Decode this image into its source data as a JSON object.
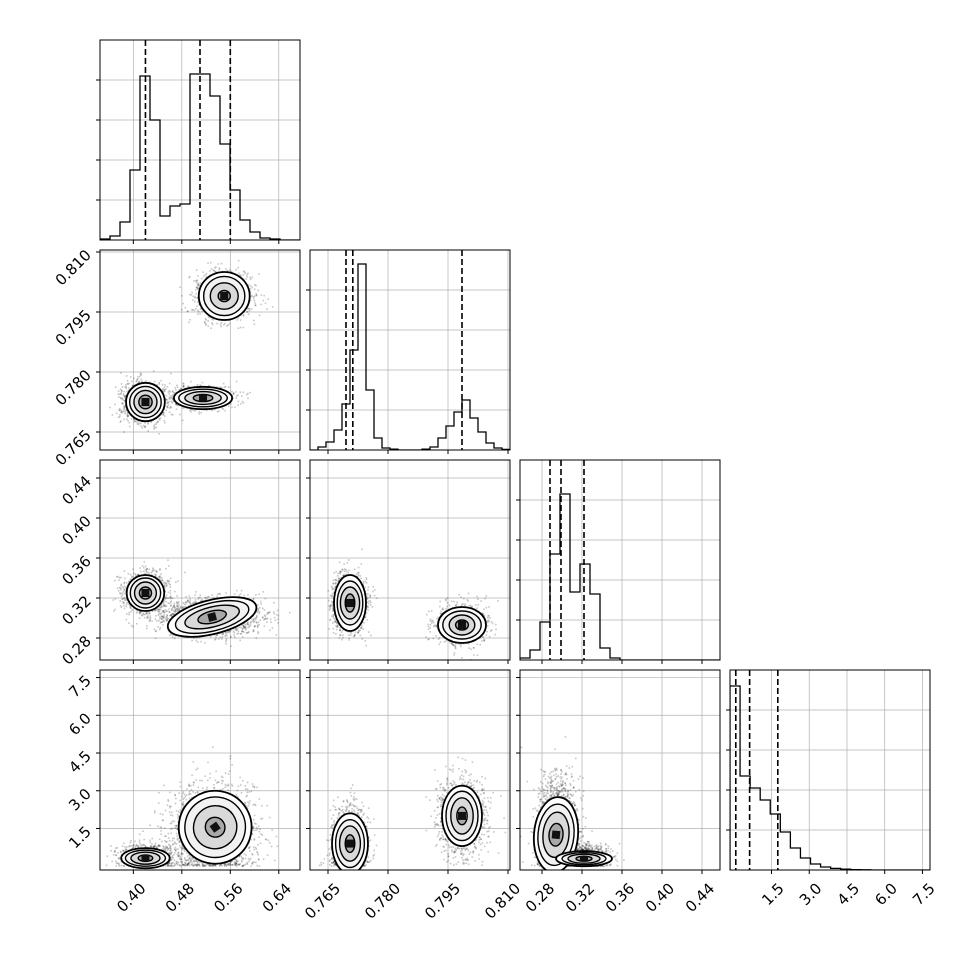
{
  "chart_data": {
    "type": "corner",
    "parameters": 4,
    "grid": true,
    "colors": {
      "line": "#000000",
      "grid": "#b0b0b0",
      "density": "#000000",
      "background": "#ffffff"
    },
    "axes": [
      {
        "range": [
          0.345,
          0.675
        ],
        "ticks": [
          0.4,
          0.48,
          0.56,
          0.64
        ],
        "tick_labels": [
          "0.40",
          "0.48",
          "0.56",
          "0.64"
        ]
      },
      {
        "range": [
          0.7605,
          0.8105
        ],
        "ticks": [
          0.765,
          0.78,
          0.795,
          0.81
        ],
        "tick_labels": [
          "0.765",
          "0.780",
          "0.795",
          "0.810"
        ]
      },
      {
        "range": [
          0.258,
          0.458
        ],
        "ticks": [
          0.28,
          0.32,
          0.36,
          0.4,
          0.44
        ],
        "tick_labels": [
          "0.28",
          "0.32",
          "0.36",
          "0.40",
          "0.44"
        ]
      },
      {
        "range": [
          -0.15,
          7.8
        ],
        "ticks": [
          1.5,
          3.0,
          4.5,
          6.0,
          7.5
        ],
        "tick_labels": [
          "1.5",
          "3.0",
          "4.5",
          "6.0",
          "7.5"
        ]
      }
    ],
    "diagonal": [
      {
        "param": 0,
        "quantiles": [
          0.42,
          0.51,
          0.56
        ],
        "bin_edges": [
          0.345,
          0.3615,
          0.378,
          0.3945,
          0.411,
          0.4275,
          0.444,
          0.4605,
          0.477,
          0.4935,
          0.51,
          0.5265,
          0.543,
          0.5595,
          0.576,
          0.5925,
          0.609,
          0.6255,
          0.642,
          0.6585,
          0.675
        ],
        "counts": [
          0.005,
          0.02,
          0.09,
          0.35,
          0.82,
          0.6,
          0.12,
          0.17,
          0.18,
          0.83,
          0.83,
          0.72,
          0.48,
          0.25,
          0.1,
          0.04,
          0.01,
          0.005,
          0.0,
          0.0
        ]
      },
      {
        "param": 1,
        "quantiles": [
          0.7695,
          0.7712,
          0.7985
        ],
        "bin_edges": [
          0.7605,
          0.7625,
          0.7645,
          0.7665,
          0.7685,
          0.7705,
          0.7725,
          0.7745,
          0.7765,
          0.7785,
          0.7805,
          0.7825,
          0.7845,
          0.7865,
          0.7885,
          0.7905,
          0.7925,
          0.7945,
          0.7965,
          0.7985,
          0.8005,
          0.8025,
          0.8045,
          0.8065,
          0.8085,
          0.8105
        ],
        "counts": [
          0.0,
          0.015,
          0.04,
          0.1,
          0.23,
          0.5,
          0.93,
          0.3,
          0.06,
          0.01,
          0.004,
          0.0,
          0.0,
          0.0,
          0.004,
          0.015,
          0.06,
          0.12,
          0.19,
          0.25,
          0.16,
          0.09,
          0.035,
          0.01,
          0.003
        ]
      },
      {
        "param": 2,
        "quantiles": [
          0.288,
          0.299,
          0.322
        ],
        "bin_edges": [
          0.258,
          0.268,
          0.278,
          0.288,
          0.298,
          0.308,
          0.318,
          0.328,
          0.338,
          0.348,
          0.358,
          0.368,
          0.378,
          0.388,
          0.398,
          0.408,
          0.418,
          0.428,
          0.438,
          0.448,
          0.458
        ],
        "counts": [
          0.01,
          0.05,
          0.19,
          0.53,
          0.83,
          0.34,
          0.48,
          0.33,
          0.06,
          0.01,
          0.0,
          0.0,
          0.0,
          0.0,
          0.0,
          0.0,
          0.0,
          0.0,
          0.0,
          0.0
        ]
      },
      {
        "param": 3,
        "quantiles": [
          0.08,
          0.63,
          1.75
        ],
        "bin_edges": [
          -0.15,
          0.25,
          0.65,
          1.05,
          1.45,
          1.85,
          2.25,
          2.65,
          3.05,
          3.45,
          3.85,
          4.25,
          4.65,
          5.05,
          5.45,
          5.85,
          6.25,
          6.65,
          7.05,
          7.45,
          7.8
        ],
        "counts": [
          0.92,
          0.47,
          0.41,
          0.35,
          0.28,
          0.19,
          0.11,
          0.06,
          0.03,
          0.015,
          0.008,
          0.004,
          0.002,
          0.001,
          0.0,
          0.0,
          0.0,
          0.0,
          0.0,
          0.0
        ]
      }
    ],
    "scatter": [
      {
        "x_param": 0,
        "y_param": 1,
        "modes": [
          {
            "x": 0.42,
            "y": 0.7725,
            "sx": 0.018,
            "sy": 0.0025,
            "w": 0.35
          },
          {
            "x": 0.515,
            "y": 0.7735,
            "sx": 0.025,
            "sy": 0.0014,
            "w": 0.3
          },
          {
            "x": 0.55,
            "y": 0.799,
            "sx": 0.024,
            "sy": 0.003,
            "w": 0.35
          }
        ],
        "contours": [
          {
            "cx": 0.42,
            "cy": 0.7725,
            "rx": [
              0.032,
              0.026,
              0.019,
              0.011
            ],
            "ry": [
              0.0048,
              0.0039,
              0.0029,
              0.0017
            ],
            "angle": 0
          },
          {
            "cx": 0.515,
            "cy": 0.7735,
            "rx": [
              0.048,
              0.04,
              0.03,
              0.016
            ],
            "ry": [
              0.0028,
              0.0022,
              0.0016,
              0.0009
            ],
            "angle": 0
          },
          {
            "cx": 0.55,
            "cy": 0.799,
            "rx": [
              0.042,
              0.034,
              0.023,
              0.01
            ],
            "ry": [
              0.006,
              0.0049,
              0.0033,
              0.0014
            ],
            "angle": 0
          }
        ]
      },
      {
        "x_param": 0,
        "y_param": 2,
        "modes": [
          {
            "x": 0.42,
            "y": 0.325,
            "sx": 0.018,
            "sy": 0.01,
            "w": 0.4
          },
          {
            "x": 0.53,
            "y": 0.301,
            "sx": 0.04,
            "sy": 0.009,
            "w": 0.6
          }
        ],
        "contours": [
          {
            "cx": 0.42,
            "cy": 0.325,
            "rx": [
              0.031,
              0.025,
              0.018,
              0.01
            ],
            "ry": [
              0.018,
              0.015,
              0.011,
              0.006
            ],
            "angle": 0
          },
          {
            "cx": 0.53,
            "cy": 0.301,
            "rx": [
              0.075,
              0.062,
              0.046,
              0.024
            ],
            "ry": [
              0.017,
              0.014,
              0.01,
              0.006
            ],
            "angle": -14
          }
        ]
      },
      {
        "x_param": 0,
        "y_param": 3,
        "modes": [
          {
            "x": 0.42,
            "y": 0.35,
            "sx": 0.02,
            "sy": 0.25,
            "w": 0.35
          },
          {
            "x": 0.53,
            "y": 1.3,
            "sx": 0.035,
            "sy": 0.9,
            "w": 0.65
          }
        ],
        "contours": [
          {
            "cx": 0.42,
            "cy": 0.32,
            "rx": [
              0.04,
              0.033,
              0.024,
              0.012
            ],
            "ry": [
              0.4,
              0.32,
              0.24,
              0.13
            ],
            "angle": 0
          },
          {
            "cx": 0.535,
            "cy": 1.55,
            "rx": [
              0.06,
              0.05,
              0.036,
              0.016
            ],
            "ry": [
              1.45,
              1.2,
              0.85,
              0.4
            ],
            "angle": -35
          }
        ]
      },
      {
        "x_param": 1,
        "y_param": 2,
        "modes": [
          {
            "x": 0.7705,
            "y": 0.315,
            "sx": 0.002,
            "sy": 0.013,
            "w": 0.65
          },
          {
            "x": 0.7985,
            "y": 0.293,
            "sx": 0.003,
            "sy": 0.01,
            "w": 0.35
          }
        ],
        "contours": [
          {
            "cx": 0.7705,
            "cy": 0.315,
            "rx": [
              0.004,
              0.0032,
              0.0024,
              0.0012
            ],
            "ry": [
              0.028,
              0.022,
              0.016,
              0.009
            ],
            "angle": 0
          },
          {
            "cx": 0.7985,
            "cy": 0.293,
            "rx": [
              0.006,
              0.0048,
              0.0032,
              0.0016
            ],
            "ry": [
              0.018,
              0.014,
              0.01,
              0.005
            ],
            "angle": 0
          }
        ]
      },
      {
        "x_param": 1,
        "y_param": 3,
        "modes": [
          {
            "x": 0.7705,
            "y": 0.7,
            "sx": 0.002,
            "sy": 0.75,
            "w": 0.65
          },
          {
            "x": 0.7985,
            "y": 2.0,
            "sx": 0.003,
            "sy": 0.8,
            "w": 0.35
          }
        ],
        "contours": [
          {
            "cx": 0.7705,
            "cy": 0.9,
            "rx": [
              0.0045,
              0.0036,
              0.0026,
              0.0012
            ],
            "ry": [
              1.2,
              0.95,
              0.7,
              0.35
            ],
            "angle": 0
          },
          {
            "cx": 0.7985,
            "cy": 2.0,
            "rx": [
              0.005,
              0.004,
              0.0028,
              0.0013
            ],
            "ry": [
              1.2,
              0.98,
              0.72,
              0.35
            ],
            "angle": 0
          }
        ]
      },
      {
        "x_param": 2,
        "y_param": 3,
        "modes": [
          {
            "x": 0.296,
            "y": 1.4,
            "sx": 0.01,
            "sy": 1.0,
            "w": 0.65
          },
          {
            "x": 0.322,
            "y": 0.3,
            "sx": 0.012,
            "sy": 0.25,
            "w": 0.35
          }
        ],
        "contours": [
          {
            "cx": 0.294,
            "cy": 1.25,
            "rx": [
              0.022,
              0.018,
              0.013,
              0.007
            ],
            "ry": [
              1.5,
              1.22,
              0.9,
              0.45
            ],
            "angle": 5
          },
          {
            "cx": 0.322,
            "cy": 0.3,
            "rx": [
              0.028,
              0.022,
              0.016,
              0.008
            ],
            "ry": [
              0.3,
              0.24,
              0.18,
              0.1
            ],
            "angle": 0
          }
        ]
      }
    ]
  }
}
